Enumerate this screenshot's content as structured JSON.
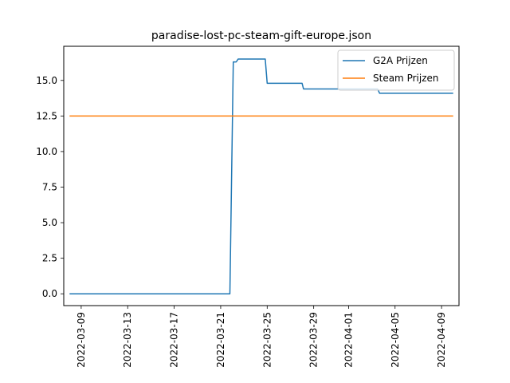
{
  "chart_data": {
    "type": "line",
    "title": "paradise-lost-pc-steam-gift-europe.json",
    "xlabel": "",
    "ylabel": "",
    "xlim": [
      "2022-03-07T12:00",
      "2022-04-10T12:00"
    ],
    "ylim": [
      -0.83,
      17.4
    ],
    "grid": false,
    "legend_position": "top-right",
    "x_ticks": [
      "2022-03-09",
      "2022-03-13",
      "2022-03-17",
      "2022-03-21",
      "2022-03-25",
      "2022-03-29",
      "2022-04-01",
      "2022-04-05",
      "2022-04-09"
    ],
    "y_ticks": [
      0.0,
      2.5,
      5.0,
      7.5,
      10.0,
      12.5,
      15.0
    ],
    "y_tick_labels": [
      "0.0",
      "2.5",
      "5.0",
      "7.5",
      "10.0",
      "12.5",
      "15.0"
    ],
    "series": [
      {
        "name": "G2A Prijzen",
        "color": "#1f77b4",
        "points": [
          [
            "2022-03-08T00:00",
            0.0
          ],
          [
            "2022-03-21T19:00",
            0.0
          ],
          [
            "2022-03-22T02:00",
            16.3
          ],
          [
            "2022-03-22T08:00",
            16.3
          ],
          [
            "2022-03-22T12:00",
            16.5
          ],
          [
            "2022-03-24T20:00",
            16.5
          ],
          [
            "2022-03-25T00:00",
            14.8
          ],
          [
            "2022-03-28T00:00",
            14.8
          ],
          [
            "2022-03-28T03:00",
            14.4
          ],
          [
            "2022-04-03T12:00",
            14.4
          ],
          [
            "2022-04-03T16:00",
            14.1
          ],
          [
            "2022-04-10T00:00",
            14.1
          ]
        ]
      },
      {
        "name": "Steam Prijzen",
        "color": "#ff7f0e",
        "points": [
          [
            "2022-03-08T00:00",
            12.5
          ],
          [
            "2022-04-10T00:00",
            12.5
          ]
        ]
      }
    ]
  }
}
